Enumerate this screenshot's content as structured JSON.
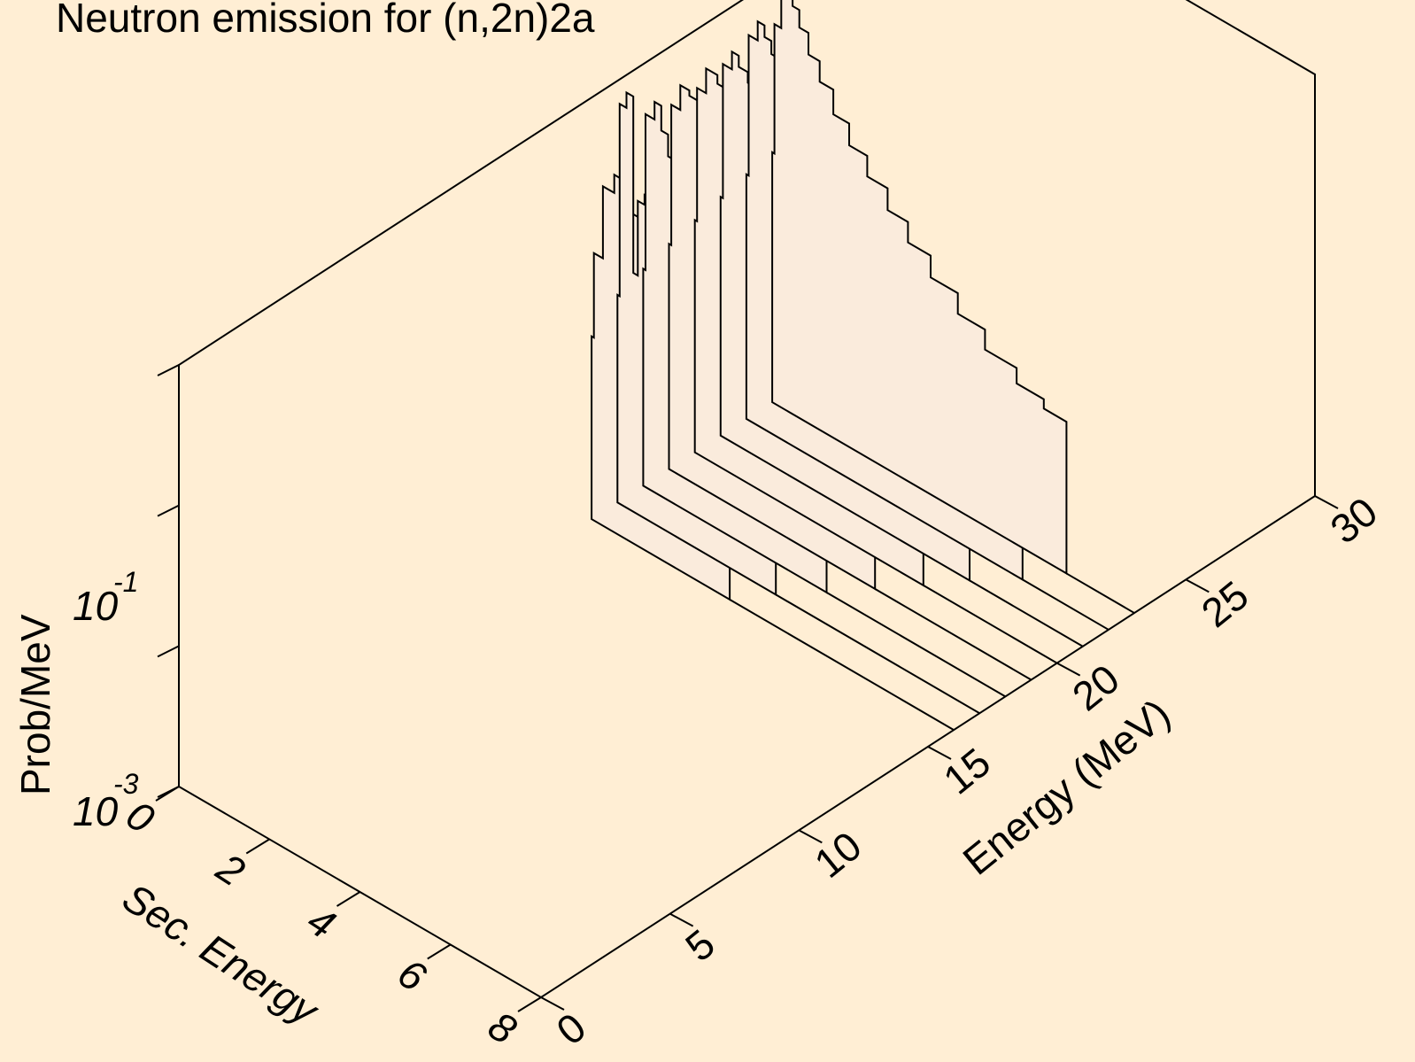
{
  "colors": {
    "background": "#ffeed4",
    "fill": "#faebdc",
    "line": "#000000"
  },
  "chart_data": {
    "type": "waterfall-3d-step",
    "title": "Neutron emission for (n,2n)2a",
    "xlabel": "Sec. Energy",
    "ylabel": "Energy (MeV)",
    "zlabel": "Prob/MeV",
    "x_ticks": [
      "0",
      "2",
      "4",
      "6",
      "8"
    ],
    "y_ticks": [
      "0",
      "5",
      "10",
      "15",
      "20",
      "25",
      "30"
    ],
    "z_ticks": [
      {
        "base": "10",
        "exp": "-3"
      },
      {
        "base": "10",
        "exp": "-1"
      }
    ],
    "xlim": [
      0,
      8
    ],
    "ylim": [
      0,
      30
    ],
    "zscale": "log",
    "zlim": [
      0.001,
      1
    ],
    "series": [
      {
        "energy": 16,
        "max_sec_energy": 3.05,
        "points": [
          [
            0.05,
            0.02
          ],
          [
            0.25,
            0.08
          ],
          [
            0.5,
            0.26
          ],
          [
            0.7,
            0.35
          ],
          [
            0.9,
            0.3
          ],
          [
            1.2,
            0.22
          ],
          [
            1.5,
            0.14
          ],
          [
            1.8,
            0.09
          ],
          [
            2.1,
            0.06
          ],
          [
            2.4,
            0.04
          ],
          [
            2.7,
            0.025
          ],
          [
            2.9,
            0.018
          ],
          [
            3.05,
            0.012
          ]
        ]
      },
      {
        "energy": 17,
        "max_sec_energy": 3.5,
        "points": [
          [
            0.05,
            0.03
          ],
          [
            0.2,
            0.7
          ],
          [
            0.35,
            0.9
          ],
          [
            0.45,
            0.05
          ],
          [
            0.6,
            0.17
          ],
          [
            0.8,
            0.2
          ],
          [
            1.0,
            0.17
          ],
          [
            1.3,
            0.11
          ],
          [
            1.6,
            0.075
          ],
          [
            1.9,
            0.05
          ],
          [
            2.2,
            0.035
          ],
          [
            2.5,
            0.024
          ],
          [
            2.8,
            0.017
          ],
          [
            3.1,
            0.012
          ],
          [
            3.5,
            0.008
          ]
        ]
      },
      {
        "energy": 18,
        "max_sec_energy": 4.05,
        "points": [
          [
            0.05,
            0.035
          ],
          [
            0.25,
            0.45
          ],
          [
            0.4,
            0.6
          ],
          [
            0.55,
            0.4
          ],
          [
            0.7,
            0.28
          ],
          [
            0.9,
            0.2
          ],
          [
            1.2,
            0.14
          ],
          [
            1.5,
            0.1
          ],
          [
            1.8,
            0.07
          ],
          [
            2.1,
            0.05
          ],
          [
            2.5,
            0.034
          ],
          [
            2.9,
            0.024
          ],
          [
            3.3,
            0.017
          ],
          [
            3.7,
            0.012
          ],
          [
            4.05,
            0.009
          ]
        ]
      },
      {
        "energy": 19,
        "max_sec_energy": 4.55,
        "points": [
          [
            0.05,
            0.04
          ],
          [
            0.25,
            0.4
          ],
          [
            0.45,
            0.6
          ],
          [
            0.65,
            0.55
          ],
          [
            0.85,
            0.4
          ],
          [
            1.1,
            0.27
          ],
          [
            1.4,
            0.18
          ],
          [
            1.7,
            0.12
          ],
          [
            2.0,
            0.085
          ],
          [
            2.4,
            0.058
          ],
          [
            2.8,
            0.04
          ],
          [
            3.2,
            0.028
          ],
          [
            3.6,
            0.02
          ],
          [
            4.0,
            0.014
          ],
          [
            4.55,
            0.01
          ]
        ]
      },
      {
        "energy": 20,
        "max_sec_energy": 5.05,
        "points": [
          [
            0.05,
            0.045
          ],
          [
            0.25,
            0.4
          ],
          [
            0.5,
            0.6
          ],
          [
            0.7,
            0.52
          ],
          [
            0.95,
            0.38
          ],
          [
            1.2,
            0.26
          ],
          [
            1.5,
            0.18
          ],
          [
            1.85,
            0.12
          ],
          [
            2.2,
            0.085
          ],
          [
            2.6,
            0.058
          ],
          [
            3.0,
            0.04
          ],
          [
            3.4,
            0.028
          ],
          [
            3.9,
            0.02
          ],
          [
            4.4,
            0.014
          ],
          [
            5.05,
            0.009
          ]
        ]
      },
      {
        "energy": 21,
        "max_sec_energy": 5.5,
        "points": [
          [
            0.05,
            0.05
          ],
          [
            0.25,
            0.45
          ],
          [
            0.4,
            0.6
          ],
          [
            0.6,
            0.5
          ],
          [
            0.85,
            0.42
          ],
          [
            1.1,
            0.3
          ],
          [
            1.4,
            0.21
          ],
          [
            1.75,
            0.14
          ],
          [
            2.1,
            0.1
          ],
          [
            2.5,
            0.07
          ],
          [
            2.9,
            0.048
          ],
          [
            3.4,
            0.033
          ],
          [
            3.9,
            0.023
          ],
          [
            4.5,
            0.016
          ],
          [
            5.5,
            0.01
          ]
        ]
      },
      {
        "energy": 22,
        "max_sec_energy": 6.1,
        "points": [
          [
            0.05,
            0.055
          ],
          [
            0.25,
            0.55
          ],
          [
            0.4,
            0.75
          ],
          [
            0.55,
            0.62
          ],
          [
            0.75,
            0.5
          ],
          [
            1.0,
            0.36
          ],
          [
            1.3,
            0.25
          ],
          [
            1.65,
            0.17
          ],
          [
            2.0,
            0.12
          ],
          [
            2.45,
            0.085
          ],
          [
            2.9,
            0.06
          ],
          [
            3.4,
            0.042
          ],
          [
            4.0,
            0.03
          ],
          [
            4.6,
            0.021
          ],
          [
            5.3,
            0.015
          ],
          [
            6.1,
            0.011
          ]
        ]
      },
      {
        "energy": 23,
        "max_sec_energy": 6.5,
        "points": [
          [
            0.05,
            0.06
          ],
          [
            0.2,
            0.5
          ],
          [
            0.3,
            0.9
          ],
          [
            0.45,
            0.95
          ],
          [
            0.6,
            0.8
          ],
          [
            0.8,
            0.6
          ],
          [
            1.05,
            0.42
          ],
          [
            1.35,
            0.3
          ],
          [
            1.7,
            0.2
          ],
          [
            2.1,
            0.14
          ],
          [
            2.55,
            0.1
          ],
          [
            3.0,
            0.07
          ],
          [
            3.5,
            0.05
          ],
          [
            4.1,
            0.035
          ],
          [
            4.7,
            0.025
          ],
          [
            5.4,
            0.018
          ],
          [
            6.0,
            0.014
          ],
          [
            6.5,
            0.012
          ]
        ]
      }
    ]
  }
}
